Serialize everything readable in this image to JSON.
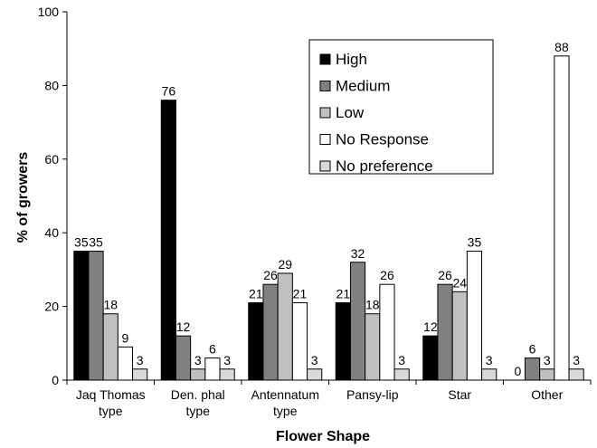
{
  "chart_data": {
    "type": "bar",
    "title": "",
    "xlabel": "Flower Shape",
    "ylabel": "% of growers",
    "ylim": [
      0,
      100
    ],
    "yticks": [
      0,
      20,
      40,
      60,
      80,
      100
    ],
    "grid": false,
    "legend_position": "top-right",
    "categories": [
      [
        "Jaq Thomas",
        "type"
      ],
      [
        "Den. phal",
        "type"
      ],
      [
        "Antennatum",
        "type"
      ],
      [
        "Pansy-lip"
      ],
      [
        "Star"
      ],
      [
        "Other"
      ]
    ],
    "series": [
      {
        "name": "High",
        "color": "#000000",
        "values": [
          35,
          76,
          21,
          21,
          12,
          0
        ]
      },
      {
        "name": "Medium",
        "color": "#808080",
        "values": [
          35,
          12,
          26,
          32,
          26,
          6
        ]
      },
      {
        "name": "Low",
        "color": "#c0c0c0",
        "values": [
          18,
          3,
          29,
          18,
          24,
          3
        ]
      },
      {
        "name": "No Response",
        "color": "#ffffff",
        "values": [
          9,
          6,
          21,
          26,
          35,
          88
        ]
      },
      {
        "name": "No preference",
        "color": "#d9d9d9",
        "values": [
          3,
          3,
          3,
          3,
          3,
          3
        ]
      }
    ],
    "value_labels": [
      [
        "35",
        "35",
        "18",
        "9",
        "3"
      ],
      [
        "76",
        "12",
        "3",
        "6",
        "3"
      ],
      [
        "21",
        "26",
        "29",
        "21",
        "3"
      ],
      [
        "21",
        "32",
        "18",
        "26",
        "3"
      ],
      [
        "12",
        "26",
        "24",
        "35",
        "3"
      ],
      [
        "0",
        "6",
        "3",
        "88",
        "3"
      ]
    ]
  }
}
